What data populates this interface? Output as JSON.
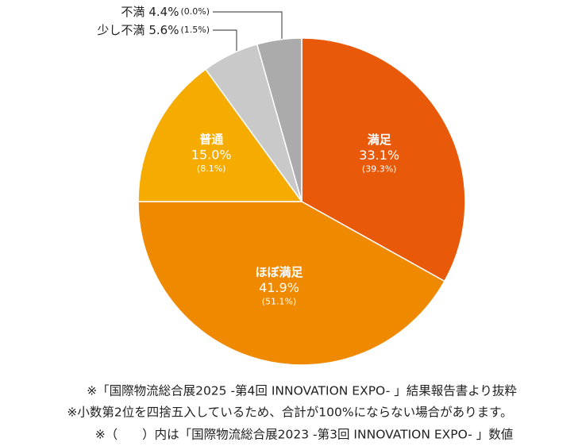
{
  "chart_data": {
    "type": "pie",
    "categories": [
      "満足",
      "ほぼ満足",
      "普通",
      "少し不満",
      "不満"
    ],
    "values": [
      33.1,
      41.9,
      15.0,
      5.6,
      4.4
    ],
    "value_labels": [
      "33.1%",
      "41.9%",
      "15.0%",
      "5.6%",
      "4.4%"
    ],
    "previous_labels": [
      "(39.3%)",
      "(51.1%)",
      "(8.1%)",
      "(1.5%)",
      "(0.0%)"
    ],
    "colors": [
      "#e85a0a",
      "#ef8a00",
      "#f5ab00",
      "#c9c9c9",
      "#ababab"
    ],
    "notes": [
      "※「国際物流総合展2025 -第4回 INNOVATION EXPO- 」結果報告書より抜粋",
      "※小数第2位を四捨五入しているため、合計が100%にならない場合があります。",
      "※（　　）内は「国際物流総合展2023 -第3回 INNOVATION EXPO- 」数値"
    ]
  }
}
